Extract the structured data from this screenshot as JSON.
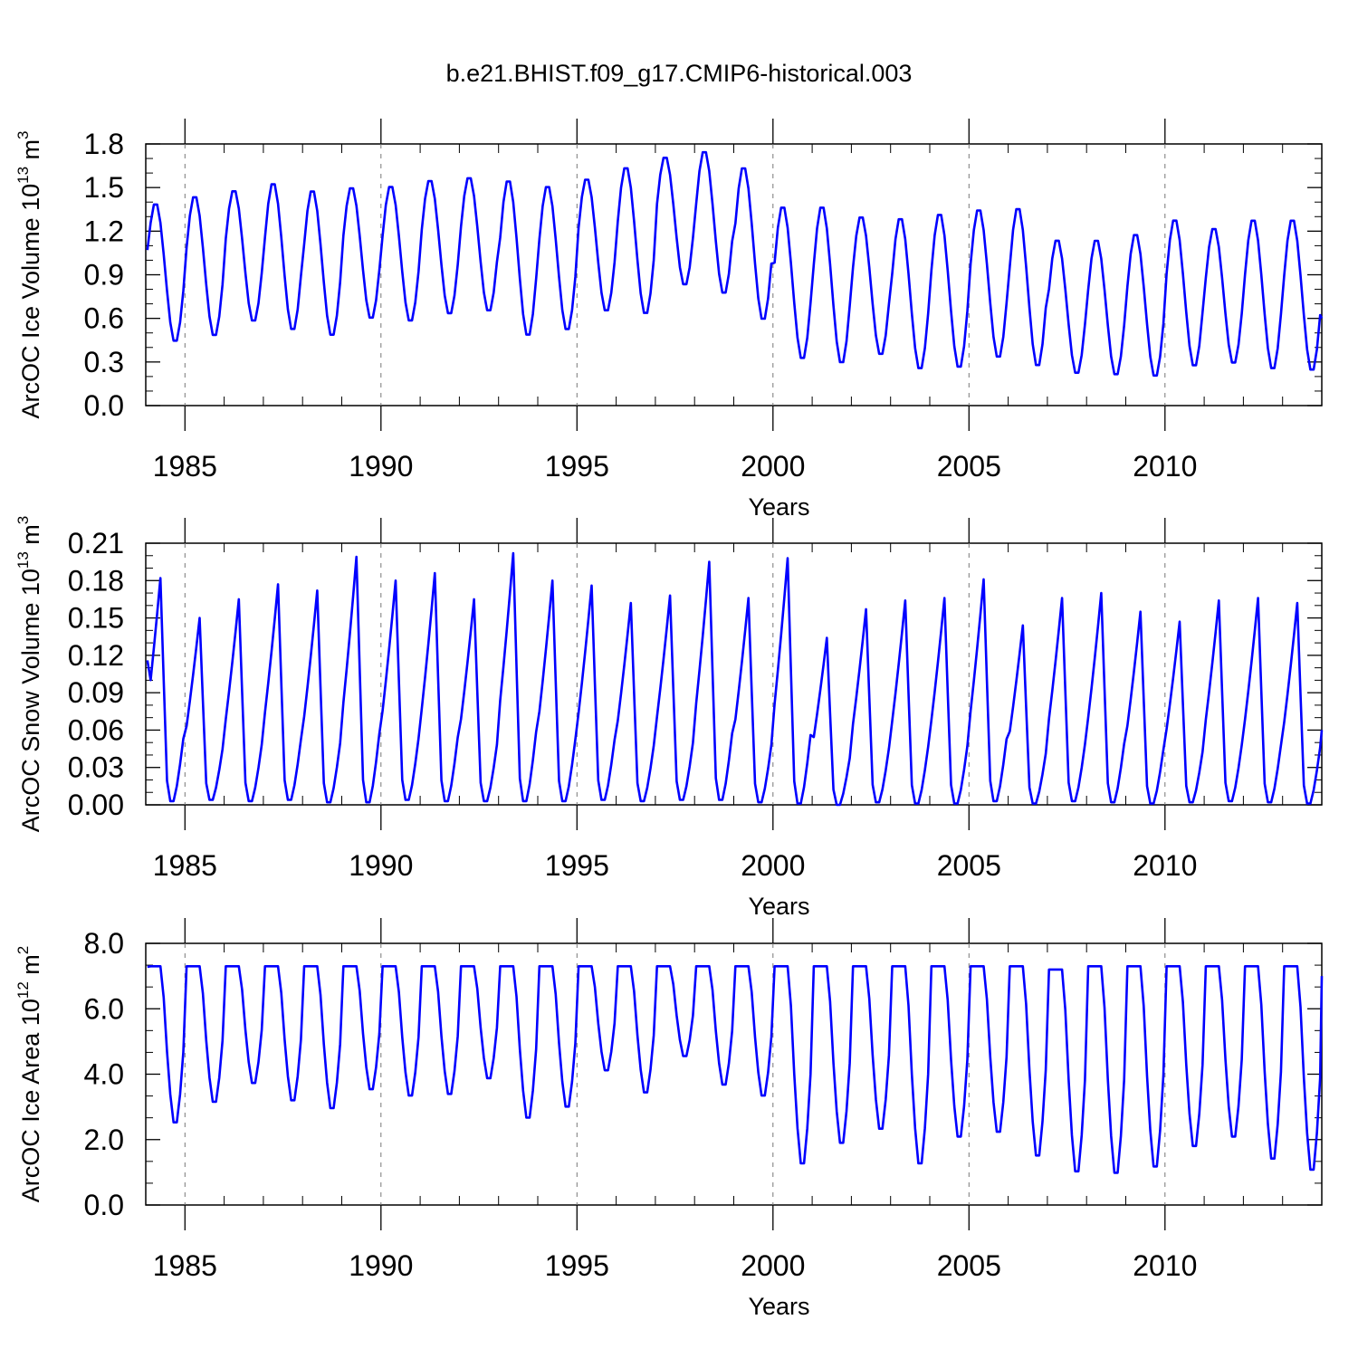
{
  "figure": {
    "title": "b.e21.BHIST.f09_g17.CMIP6-historical.003"
  },
  "chart_data": [
    {
      "type": "line",
      "name": "ice_volume",
      "ylabel_prefix": "ArcOC Ice Volume 10",
      "ylabel_exp": "13",
      "ylabel_unit": " m",
      "ylabel_unit_exp": "3",
      "xlabel": "Years",
      "xlim": [
        1984.0,
        2014.0
      ],
      "ylim": [
        0.0,
        1.8
      ],
      "xticks": [
        1985,
        1990,
        1995,
        2000,
        2005,
        2010
      ],
      "yticks": [
        "0.0",
        "0.3",
        "0.6",
        "0.9",
        "1.2",
        "1.5",
        "1.8"
      ],
      "grid": "dashed vertical lines at major x ticks",
      "line_color": "#0000ff",
      "annual_max": [
        1.4,
        1.45,
        1.49,
        1.54,
        1.49,
        1.51,
        1.52,
        1.56,
        1.58,
        1.56,
        1.52,
        1.57,
        1.65,
        1.72,
        1.76,
        1.65,
        1.38,
        1.38,
        1.31,
        1.3,
        1.33,
        1.36,
        1.37,
        1.15,
        1.15,
        1.19,
        1.29,
        1.23,
        1.29,
        1.29
      ],
      "annual_min": [
        0.43,
        0.47,
        0.57,
        0.51,
        0.47,
        0.59,
        0.57,
        0.62,
        0.64,
        0.47,
        0.51,
        0.64,
        0.62,
        0.82,
        0.76,
        0.58,
        0.31,
        0.28,
        0.34,
        0.24,
        0.25,
        0.32,
        0.26,
        0.21,
        0.2,
        0.19,
        0.26,
        0.28,
        0.24,
        0.23
      ],
      "start_value": 1.07,
      "end_value": 0.6
    },
    {
      "type": "line",
      "name": "snow_volume",
      "ylabel_prefix": "ArcOC Snow Volume 10",
      "ylabel_exp": "13",
      "ylabel_unit": " m",
      "ylabel_unit_exp": "3",
      "xlabel": "Years",
      "xlim": [
        1984.0,
        2014.0
      ],
      "ylim": [
        0.0,
        0.21
      ],
      "xticks": [
        1985,
        1990,
        1995,
        2000,
        2005,
        2010
      ],
      "yticks": [
        "0.00",
        "0.03",
        "0.06",
        "0.09",
        "0.12",
        "0.15",
        "0.18",
        "0.21"
      ],
      "grid": "dashed vertical lines at major x ticks",
      "line_color": "#0000ff",
      "annual_max": [
        0.182,
        0.15,
        0.165,
        0.177,
        0.172,
        0.199,
        0.18,
        0.186,
        0.165,
        0.202,
        0.18,
        0.176,
        0.162,
        0.168,
        0.195,
        0.166,
        0.198,
        0.134,
        0.157,
        0.164,
        0.166,
        0.181,
        0.144,
        0.166,
        0.17,
        0.155,
        0.147,
        0.164,
        0.166,
        0.162
      ],
      "annual_min": [
        0.003,
        0.004,
        0.003,
        0.004,
        0.002,
        0.002,
        0.004,
        0.003,
        0.003,
        0.003,
        0.003,
        0.004,
        0.003,
        0.004,
        0.004,
        0.002,
        0.001,
        0.0,
        0.002,
        0.001,
        0.001,
        0.003,
        0.001,
        0.003,
        0.002,
        0.001,
        0.002,
        0.003,
        0.002,
        0.001
      ],
      "start_value": 0.116,
      "end_value": 0.06
    },
    {
      "type": "line",
      "name": "ice_area",
      "ylabel_prefix": "ArcOC Ice Area 10",
      "ylabel_exp": "12",
      "ylabel_unit": " m",
      "ylabel_unit_exp": "2",
      "xlabel": "Years",
      "xlim": [
        1984.0,
        2014.0
      ],
      "ylim": [
        0.0,
        8.0
      ],
      "xticks": [
        1985,
        1990,
        1995,
        2000,
        2005,
        2010
      ],
      "yticks": [
        "0.0",
        "2.0",
        "4.0",
        "6.0",
        "8.0"
      ],
      "grid": "dashed vertical lines at major x ticks",
      "line_color": "#0000ff",
      "annual_max": [
        7.3,
        7.3,
        7.3,
        7.3,
        7.3,
        7.3,
        7.3,
        7.3,
        7.3,
        7.3,
        7.3,
        7.3,
        7.3,
        7.3,
        7.3,
        7.3,
        7.3,
        7.3,
        7.3,
        7.3,
        7.3,
        7.3,
        7.3,
        7.2,
        7.3,
        7.3,
        7.3,
        7.3,
        7.3,
        7.3
      ],
      "annual_min": [
        2.35,
        3.0,
        3.6,
        3.05,
        2.8,
        3.4,
        3.2,
        3.25,
        3.75,
        2.5,
        2.85,
        4.0,
        3.3,
        4.45,
        3.55,
        3.2,
        1.05,
        1.7,
        2.15,
        1.05,
        1.9,
        2.05,
        1.3,
        0.8,
        0.75,
        0.95,
        1.6,
        1.9,
        1.2,
        0.85
      ],
      "start_value": 7.28,
      "end_value": 7.0
    }
  ]
}
